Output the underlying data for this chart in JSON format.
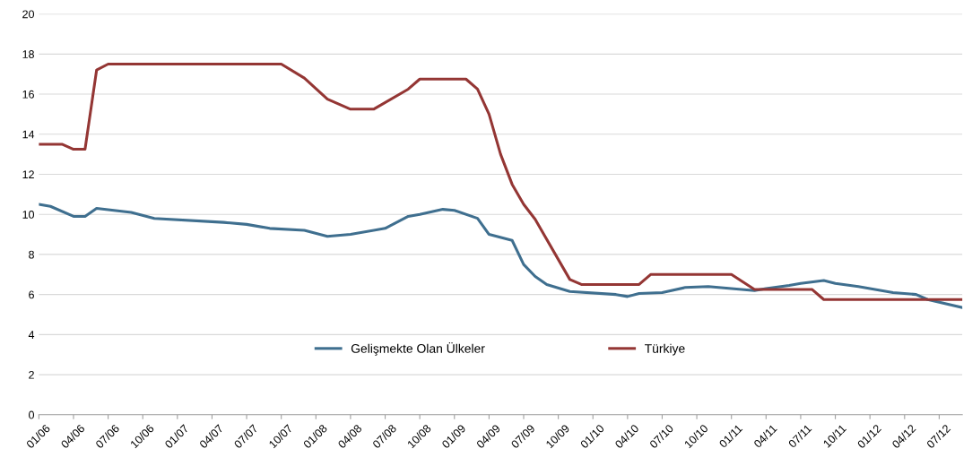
{
  "chart_data": {
    "type": "line",
    "xlim": [
      "2006-01",
      "2012-09"
    ],
    "xticks": [
      {
        "value": "2006-01",
        "label": "01/06"
      },
      {
        "value": "2006-04",
        "label": "04/06"
      },
      {
        "value": "2006-07",
        "label": "07/06"
      },
      {
        "value": "2006-10",
        "label": "10/06"
      },
      {
        "value": "2007-01",
        "label": "01/07"
      },
      {
        "value": "2007-04",
        "label": "04/07"
      },
      {
        "value": "2007-07",
        "label": "07/07"
      },
      {
        "value": "2007-10",
        "label": "10/07"
      },
      {
        "value": "2008-01",
        "label": "01/08"
      },
      {
        "value": "2008-04",
        "label": "04/08"
      },
      {
        "value": "2008-07",
        "label": "07/08"
      },
      {
        "value": "2008-10",
        "label": "10/08"
      },
      {
        "value": "2009-01",
        "label": "01/09"
      },
      {
        "value": "2009-04",
        "label": "04/09"
      },
      {
        "value": "2009-07",
        "label": "07/09"
      },
      {
        "value": "2009-10",
        "label": "10/09"
      },
      {
        "value": "2010-01",
        "label": "01/10"
      },
      {
        "value": "2010-04",
        "label": "04/10"
      },
      {
        "value": "2010-07",
        "label": "07/10"
      },
      {
        "value": "2010-10",
        "label": "10/10"
      },
      {
        "value": "2011-01",
        "label": "01/11"
      },
      {
        "value": "2011-04",
        "label": "04/11"
      },
      {
        "value": "2011-07",
        "label": "07/11"
      },
      {
        "value": "2011-10",
        "label": "10/11"
      },
      {
        "value": "2012-01",
        "label": "01/12"
      },
      {
        "value": "2012-04",
        "label": "04/12"
      },
      {
        "value": "2012-07",
        "label": "07/12"
      }
    ],
    "ylim": [
      0,
      20
    ],
    "yticks": [
      0,
      2,
      4,
      6,
      8,
      10,
      12,
      14,
      16,
      18,
      20
    ],
    "grid": "y",
    "legend": "bottom",
    "marker": "none",
    "line_style": "solid",
    "series": [
      {
        "name": "Gelişmekte Olan Ülkeler",
        "color": "#3f6f8f",
        "x": [
          "2006-01",
          "2006-02",
          "2006-04",
          "2006-05",
          "2006-06",
          "2006-09",
          "2006-11",
          "2007-05",
          "2007-07",
          "2007-09",
          "2007-12",
          "2008-02",
          "2008-04",
          "2008-07",
          "2008-09",
          "2008-10",
          "2008-12",
          "2009-01",
          "2009-03",
          "2009-04",
          "2009-06",
          "2009-07",
          "2009-08",
          "2009-09",
          "2009-11",
          "2010-03",
          "2010-04",
          "2010-05",
          "2010-07",
          "2010-09",
          "2010-11",
          "2011-01",
          "2011-03",
          "2011-04",
          "2011-06",
          "2011-07",
          "2011-09",
          "2011-10",
          "2011-12",
          "2012-02",
          "2012-03",
          "2012-05",
          "2012-06",
          "2012-09"
        ],
        "values": [
          10.5,
          10.4,
          9.9,
          9.9,
          10.3,
          10.1,
          9.8,
          9.6,
          9.5,
          9.3,
          9.2,
          8.9,
          9.0,
          9.3,
          9.9,
          10.0,
          10.25,
          10.2,
          9.8,
          9.0,
          8.7,
          7.5,
          6.9,
          6.5,
          6.15,
          6.0,
          5.9,
          6.05,
          6.1,
          6.35,
          6.4,
          6.3,
          6.2,
          6.3,
          6.45,
          6.55,
          6.7,
          6.55,
          6.4,
          6.2,
          6.1,
          6.0,
          5.75,
          5.35
        ]
      },
      {
        "name": "Türkiye",
        "color": "#943634",
        "x": [
          "2006-01",
          "2006-03",
          "2006-04",
          "2006-05",
          "2006-06",
          "2006-07",
          "2007-10",
          "2007-12",
          "2008-02",
          "2008-04",
          "2008-06",
          "2008-09",
          "2008-10",
          "2009-02",
          "2009-03",
          "2009-04",
          "2009-05",
          "2009-06",
          "2009-07",
          "2009-08",
          "2009-11",
          "2009-12",
          "2010-05",
          "2010-06",
          "2011-01",
          "2011-03",
          "2011-08",
          "2011-09",
          "2012-09"
        ],
        "values": [
          13.5,
          13.5,
          13.25,
          13.25,
          17.2,
          17.5,
          17.5,
          16.8,
          15.75,
          15.25,
          15.25,
          16.25,
          16.75,
          16.75,
          16.25,
          15.0,
          13.0,
          11.5,
          10.5,
          9.75,
          6.75,
          6.5,
          6.5,
          7.0,
          7.0,
          6.25,
          6.25,
          5.75,
          5.75
        ]
      }
    ]
  }
}
